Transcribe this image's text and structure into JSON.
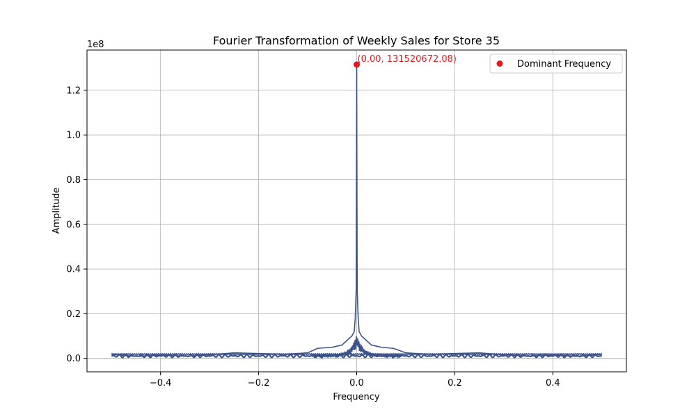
{
  "chart_data": {
    "type": "line",
    "title": "Fourier Transformation of Weekly Sales for Store 35",
    "xlabel": "Frequency",
    "ylabel": "Amplitude",
    "y_offset_label": "1e8",
    "xlim": [
      -0.55,
      0.55
    ],
    "ylim": [
      -6000000,
      138000000
    ],
    "grid": true,
    "x_ticks": [
      -0.4,
      -0.2,
      0.0,
      0.2,
      0.4
    ],
    "x_tick_labels": [
      "−0.4",
      "−0.2",
      "0.0",
      "0.2",
      "0.4"
    ],
    "y_ticks": [
      0,
      20000000,
      40000000,
      60000000,
      80000000,
      100000000,
      120000000
    ],
    "y_tick_labels": [
      "0.0",
      "0.2",
      "0.4",
      "0.6",
      "0.8",
      "1.0",
      "1.2"
    ],
    "series": [
      {
        "color": "#3b528b",
        "points": [
          [
            -0.5,
            1800000
          ],
          [
            -0.45,
            900000
          ],
          [
            -0.4,
            1500000
          ],
          [
            -0.35,
            1000000
          ],
          [
            -0.3,
            1600000
          ],
          [
            -0.25,
            2500000
          ],
          [
            -0.2,
            2200000
          ],
          [
            -0.15,
            1800000
          ],
          [
            -0.1,
            2500000
          ],
          [
            -0.08,
            4500000
          ],
          [
            -0.05,
            5000000
          ],
          [
            -0.03,
            6000000
          ],
          [
            -0.02,
            8000000
          ],
          [
            -0.01,
            10000000
          ],
          [
            -0.005,
            12000000
          ],
          [
            -0.003,
            18000000
          ],
          [
            -0.001,
            31000000
          ],
          [
            0.0,
            131520672.08
          ],
          [
            0.001,
            31000000
          ],
          [
            0.003,
            18000000
          ],
          [
            0.005,
            12000000
          ],
          [
            0.01,
            10000000
          ],
          [
            0.02,
            8000000
          ],
          [
            0.03,
            6000000
          ],
          [
            0.05,
            5000000
          ],
          [
            0.075,
            4500000
          ],
          [
            0.1,
            2500000
          ],
          [
            0.15,
            1800000
          ],
          [
            0.2,
            2200000
          ],
          [
            0.25,
            2500000
          ],
          [
            0.3,
            1600000
          ],
          [
            0.35,
            1000000
          ],
          [
            0.4,
            1500000
          ],
          [
            0.45,
            900000
          ],
          [
            0.5,
            1800000
          ]
        ]
      }
    ],
    "dominant_point": {
      "x": 0.0,
      "y": 131520672.08,
      "label": "(0.00, 131520672.08)",
      "color": "#e31a1c"
    },
    "legend": {
      "position": "top-right",
      "entries": [
        {
          "label": "Dominant Frequency",
          "color": "#e31a1c",
          "marker": "dot"
        }
      ]
    }
  }
}
